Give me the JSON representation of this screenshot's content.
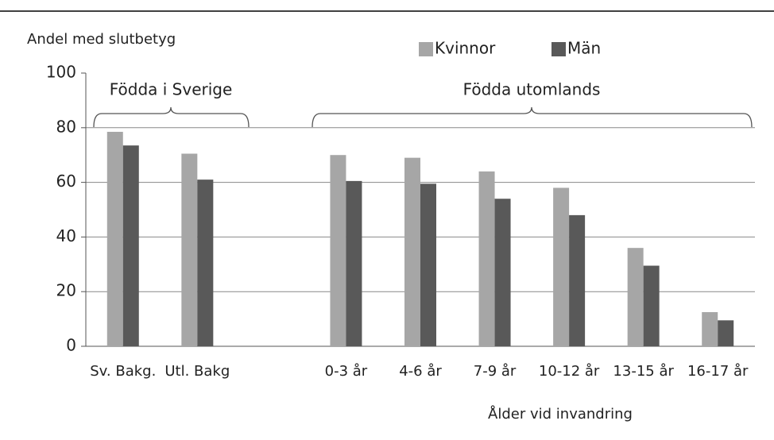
{
  "chart_data": {
    "type": "bar",
    "y_label": "Andel med slutbetyg",
    "x_label": "Ålder vid invandring",
    "annotations": [
      "Födda i Sverige",
      "Födda utomlands"
    ],
    "categories": [
      "Sv. Bakg.",
      "Utl. Bakg",
      null,
      "0-3 år",
      "4-6 år",
      "7-9 år",
      "10-12 år",
      "13-15 år",
      "16-17 år"
    ],
    "series": [
      {
        "name": "Kvinnor",
        "color": "#a6a6a6",
        "values": [
          78.5,
          70.5,
          null,
          70,
          69,
          64,
          58,
          36,
          12.5
        ]
      },
      {
        "name": "Män",
        "color": "#595959",
        "values": [
          73.5,
          61,
          null,
          60.5,
          59.5,
          54,
          48,
          29.5,
          9.5
        ]
      }
    ],
    "ylim": [
      0,
      100
    ],
    "yticks": [
      0,
      20,
      40,
      60,
      80,
      100
    ],
    "grid": true
  }
}
